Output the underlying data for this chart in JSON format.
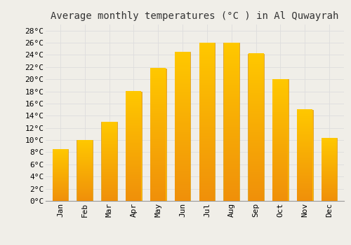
{
  "title": "Average monthly temperatures (°C ) in Al Quwayrah",
  "months": [
    "Jan",
    "Feb",
    "Mar",
    "Apr",
    "May",
    "Jun",
    "Jul",
    "Aug",
    "Sep",
    "Oct",
    "Nov",
    "Dec"
  ],
  "values": [
    8.5,
    10.0,
    13.0,
    18.0,
    21.8,
    24.5,
    26.0,
    26.0,
    24.2,
    20.0,
    15.0,
    10.3
  ],
  "bar_color_top": "#FFC200",
  "bar_color_bottom": "#F0900A",
  "bar_edge_color": "#CC8800",
  "background_color": "#F0EEE8",
  "grid_color": "#DDDDDD",
  "ylim": [
    0,
    29
  ],
  "ytick_step": 2,
  "title_fontsize": 10,
  "tick_fontsize": 8,
  "font_family": "monospace"
}
